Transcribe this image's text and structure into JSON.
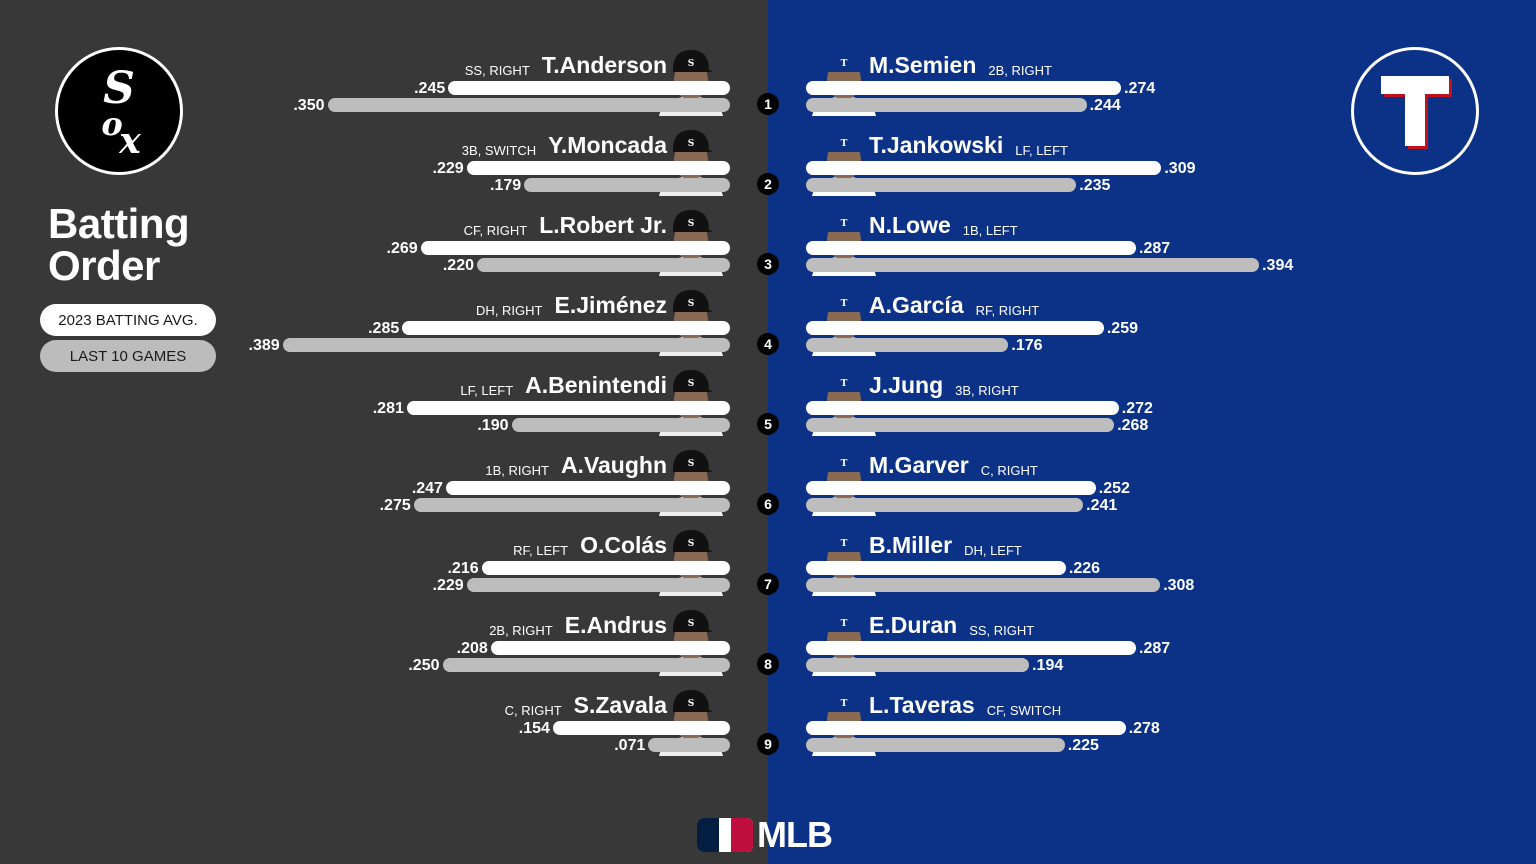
{
  "title": "Batting\nOrder",
  "legend": {
    "avg_label": "2023 BATTING AVG.",
    "last_label": "LAST 10 GAMES"
  },
  "logos": {
    "left": "white-sox-logo",
    "right": "rangers-logo",
    "bottom_text": "MLB"
  },
  "colors": {
    "left_bg": "#383838",
    "right_bg": "#0c3287",
    "avg_bar": "#ffffff",
    "last10_bar": "#bdbdbd"
  },
  "chart_data": {
    "type": "bar",
    "series_names": [
      "2023 BATTING AVG.",
      "LAST 10 GAMES"
    ],
    "teams": [
      {
        "side": "left",
        "players": [
          {
            "order": 1,
            "name": "T.Anderson",
            "pos": "SS, RIGHT",
            "avg": ".245",
            "last10": ".350"
          },
          {
            "order": 2,
            "name": "Y.Moncada",
            "pos": "3B, SWITCH",
            "avg": ".229",
            "last10": ".179"
          },
          {
            "order": 3,
            "name": "L.Robert Jr.",
            "pos": "CF, RIGHT",
            "avg": ".269",
            "last10": ".220"
          },
          {
            "order": 4,
            "name": "E.Jiménez",
            "pos": "DH, RIGHT",
            "avg": ".285",
            "last10": ".389"
          },
          {
            "order": 5,
            "name": "A.Benintendi",
            "pos": "LF, LEFT",
            "avg": ".281",
            "last10": ".190"
          },
          {
            "order": 6,
            "name": "A.Vaughn",
            "pos": "1B, RIGHT",
            "avg": ".247",
            "last10": ".275"
          },
          {
            "order": 7,
            "name": "O.Colás",
            "pos": "RF, LEFT",
            "avg": ".216",
            "last10": ".229"
          },
          {
            "order": 8,
            "name": "E.Andrus",
            "pos": "2B, RIGHT",
            "avg": ".208",
            "last10": ".250"
          },
          {
            "order": 9,
            "name": "S.Zavala",
            "pos": "C, RIGHT",
            "avg": ".154",
            "last10": ".071"
          }
        ]
      },
      {
        "side": "right",
        "players": [
          {
            "order": 1,
            "name": "M.Semien",
            "pos": "2B, RIGHT",
            "avg": ".274",
            "last10": ".244"
          },
          {
            "order": 2,
            "name": "T.Jankowski",
            "pos": "LF, LEFT",
            "avg": ".309",
            "last10": ".235"
          },
          {
            "order": 3,
            "name": "N.Lowe",
            "pos": "1B, LEFT",
            "avg": ".287",
            "last10": ".394"
          },
          {
            "order": 4,
            "name": "A.García",
            "pos": "RF, RIGHT",
            "avg": ".259",
            "last10": ".176"
          },
          {
            "order": 5,
            "name": "J.Jung",
            "pos": "3B, RIGHT",
            "avg": ".272",
            "last10": ".268"
          },
          {
            "order": 6,
            "name": "M.Garver",
            "pos": "C, RIGHT",
            "avg": ".252",
            "last10": ".241"
          },
          {
            "order": 7,
            "name": "B.Miller",
            "pos": "DH, LEFT",
            "avg": ".226",
            "last10": ".308"
          },
          {
            "order": 8,
            "name": "E.Duran",
            "pos": "SS, RIGHT",
            "avg": ".287",
            "last10": ".194"
          },
          {
            "order": 9,
            "name": "L.Taveras",
            "pos": "CF, SWITCH",
            "avg": ".278",
            "last10": ".225"
          }
        ]
      }
    ]
  }
}
